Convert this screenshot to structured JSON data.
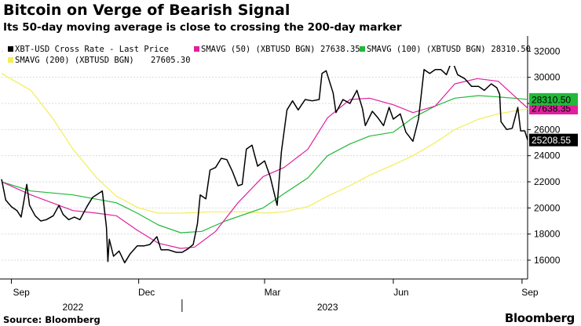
{
  "title": "Bitcoin on Verge of Bearish Signal",
  "subtitle": "Its 50-day moving average is close to crossing the 200-day marker",
  "source": "Source: Bloomberg",
  "brand": "Bloomberg",
  "chart_data": {
    "type": "line",
    "title": "Bitcoin on Verge of Bearish Signal",
    "subtitle": "Its 50-day moving average is close to crossing the 200-day marker",
    "xlabel": "",
    "ylabel": "",
    "x_range": [
      "2022-08-25",
      "2023-09-05"
    ],
    "ylim": [
      14800,
      32800
    ],
    "y_ticks": [
      16000,
      18000,
      20000,
      22000,
      24000,
      26000,
      28000,
      30000,
      32000
    ],
    "y_tick_labels": [
      "16000",
      "18000",
      "20000",
      "22000",
      "24000",
      "26000",
      "28000",
      "30000",
      "32000"
    ],
    "x_ticks": [
      {
        "date": "2022-09-01",
        "label": "Sep"
      },
      {
        "date": "2022-12-01",
        "label": "Dec"
      },
      {
        "date": "2023-03-01",
        "label": "Mar"
      },
      {
        "date": "2023-06-01",
        "label": "Jun"
      },
      {
        "date": "2023-09-01",
        "label": "Sep"
      }
    ],
    "x_year_labels": [
      {
        "date": "2022-10-15",
        "label": "2022"
      },
      {
        "date": "2023-04-15",
        "label": "2023"
      }
    ],
    "grid": true,
    "legend_position": "top",
    "series": [
      {
        "name": "XBT-USD Cross Rate - Last Price",
        "legend_value": "",
        "color": "#000000",
        "last_label": "25208.55",
        "points": [
          [
            "2022-08-25",
            22200
          ],
          [
            "2022-08-28",
            20600
          ],
          [
            "2022-09-01",
            20100
          ],
          [
            "2022-09-05",
            19800
          ],
          [
            "2022-09-08",
            19300
          ],
          [
            "2022-09-12",
            21800
          ],
          [
            "2022-09-14",
            20200
          ],
          [
            "2022-09-18",
            19400
          ],
          [
            "2022-09-22",
            19000
          ],
          [
            "2022-09-26",
            19100
          ],
          [
            "2022-10-01",
            19400
          ],
          [
            "2022-10-05",
            20200
          ],
          [
            "2022-10-08",
            19500
          ],
          [
            "2022-10-12",
            19100
          ],
          [
            "2022-10-16",
            19300
          ],
          [
            "2022-10-20",
            19100
          ],
          [
            "2022-10-25",
            20100
          ],
          [
            "2022-10-29",
            20800
          ],
          [
            "2022-11-05",
            21300
          ],
          [
            "2022-11-08",
            18500
          ],
          [
            "2022-11-09",
            15900
          ],
          [
            "2022-11-10",
            17600
          ],
          [
            "2022-11-13",
            16300
          ],
          [
            "2022-11-17",
            16700
          ],
          [
            "2022-11-21",
            15800
          ],
          [
            "2022-11-25",
            16500
          ],
          [
            "2022-11-30",
            17100
          ],
          [
            "2022-12-05",
            17100
          ],
          [
            "2022-12-09",
            17200
          ],
          [
            "2022-12-14",
            17800
          ],
          [
            "2022-12-17",
            16800
          ],
          [
            "2022-12-22",
            16800
          ],
          [
            "2022-12-28",
            16600
          ],
          [
            "2023-01-01",
            16600
          ],
          [
            "2023-01-05",
            16850
          ],
          [
            "2023-01-09",
            17200
          ],
          [
            "2023-01-12",
            18800
          ],
          [
            "2023-01-14",
            21000
          ],
          [
            "2023-01-18",
            20700
          ],
          [
            "2023-01-21",
            22900
          ],
          [
            "2023-01-25",
            23100
          ],
          [
            "2023-01-29",
            23800
          ],
          [
            "2023-02-02",
            23700
          ],
          [
            "2023-02-06",
            22800
          ],
          [
            "2023-02-10",
            21700
          ],
          [
            "2023-02-13",
            21800
          ],
          [
            "2023-02-16",
            24500
          ],
          [
            "2023-02-20",
            24800
          ],
          [
            "2023-02-24",
            23200
          ],
          [
            "2023-03-01",
            23600
          ],
          [
            "2023-03-05",
            22400
          ],
          [
            "2023-03-10",
            20200
          ],
          [
            "2023-03-13",
            24300
          ],
          [
            "2023-03-17",
            27500
          ],
          [
            "2023-03-21",
            28200
          ],
          [
            "2023-03-25",
            27500
          ],
          [
            "2023-03-30",
            28300
          ],
          [
            "2023-04-04",
            28200
          ],
          [
            "2023-04-09",
            28300
          ],
          [
            "2023-04-11",
            30300
          ],
          [
            "2023-04-14",
            30500
          ],
          [
            "2023-04-19",
            28800
          ],
          [
            "2023-04-21",
            27300
          ],
          [
            "2023-04-26",
            28300
          ],
          [
            "2023-05-01",
            28000
          ],
          [
            "2023-05-06",
            29000
          ],
          [
            "2023-05-10",
            27600
          ],
          [
            "2023-05-12",
            26300
          ],
          [
            "2023-05-17",
            27400
          ],
          [
            "2023-05-21",
            26900
          ],
          [
            "2023-05-25",
            26300
          ],
          [
            "2023-05-29",
            27700
          ],
          [
            "2023-06-01",
            26800
          ],
          [
            "2023-06-06",
            27200
          ],
          [
            "2023-06-10",
            25800
          ],
          [
            "2023-06-15",
            25100
          ],
          [
            "2023-06-19",
            26800
          ],
          [
            "2023-06-21",
            28700
          ],
          [
            "2023-06-23",
            30600
          ],
          [
            "2023-06-27",
            30300
          ],
          [
            "2023-07-01",
            30600
          ],
          [
            "2023-07-05",
            30600
          ],
          [
            "2023-07-09",
            30200
          ],
          [
            "2023-07-13",
            31300
          ],
          [
            "2023-07-17",
            30200
          ],
          [
            "2023-07-22",
            29900
          ],
          [
            "2023-07-27",
            29300
          ],
          [
            "2023-08-01",
            29300
          ],
          [
            "2023-08-05",
            29000
          ],
          [
            "2023-08-10",
            29500
          ],
          [
            "2023-08-14",
            29200
          ],
          [
            "2023-08-16",
            28700
          ],
          [
            "2023-08-17",
            26600
          ],
          [
            "2023-08-21",
            26000
          ],
          [
            "2023-08-25",
            26100
          ],
          [
            "2023-08-29",
            27700
          ],
          [
            "2023-08-31",
            25900
          ],
          [
            "2023-09-03",
            25900
          ],
          [
            "2023-09-05",
            25200
          ]
        ]
      },
      {
        "name": "SMAVG (50) (XBTUSD BGN)",
        "legend_value": "27638.35",
        "color": "#e0209e",
        "last_label": "27638.35",
        "points": [
          [
            "2022-08-25",
            22000
          ],
          [
            "2022-09-15",
            21000
          ],
          [
            "2022-10-15",
            19800
          ],
          [
            "2022-11-01",
            19600
          ],
          [
            "2022-11-15",
            19400
          ],
          [
            "2022-11-30",
            18300
          ],
          [
            "2022-12-15",
            17300
          ],
          [
            "2022-12-31",
            16900
          ],
          [
            "2023-01-10",
            17000
          ],
          [
            "2023-01-25",
            18200
          ],
          [
            "2023-02-10",
            20400
          ],
          [
            "2023-02-28",
            22400
          ],
          [
            "2023-03-15",
            23100
          ],
          [
            "2023-04-01",
            24500
          ],
          [
            "2023-04-15",
            26900
          ],
          [
            "2023-05-01",
            28300
          ],
          [
            "2023-05-15",
            28400
          ],
          [
            "2023-06-01",
            27900
          ],
          [
            "2023-06-15",
            27300
          ],
          [
            "2023-07-01",
            27800
          ],
          [
            "2023-07-15",
            29500
          ],
          [
            "2023-07-31",
            29900
          ],
          [
            "2023-08-15",
            29700
          ],
          [
            "2023-09-05",
            27640
          ]
        ]
      },
      {
        "name": "SMAVG (100) (XBTUSD BGN)",
        "legend_value": "28310.50",
        "color": "#22b83a",
        "last_label": "28310.50",
        "points": [
          [
            "2022-08-25",
            22000
          ],
          [
            "2022-09-15",
            21300
          ],
          [
            "2022-10-15",
            21000
          ],
          [
            "2022-11-15",
            20400
          ],
          [
            "2022-11-30",
            19600
          ],
          [
            "2022-12-15",
            18700
          ],
          [
            "2022-12-31",
            18100
          ],
          [
            "2023-01-15",
            18200
          ],
          [
            "2023-02-01",
            19000
          ],
          [
            "2023-02-28",
            20000
          ],
          [
            "2023-03-15",
            21100
          ],
          [
            "2023-04-01",
            22300
          ],
          [
            "2023-04-15",
            24000
          ],
          [
            "2023-05-01",
            24900
          ],
          [
            "2023-05-15",
            25500
          ],
          [
            "2023-06-01",
            25800
          ],
          [
            "2023-06-15",
            26900
          ],
          [
            "2023-07-01",
            27800
          ],
          [
            "2023-07-15",
            28400
          ],
          [
            "2023-08-01",
            28600
          ],
          [
            "2023-08-15",
            28500
          ],
          [
            "2023-09-05",
            28310
          ]
        ]
      },
      {
        "name": "SMAVG (200) (XBTUSD BGN)",
        "legend_value": "27605.30",
        "color": "#f2ee58",
        "last_label": "",
        "points": [
          [
            "2022-08-25",
            30300
          ],
          [
            "2022-09-15",
            29000
          ],
          [
            "2022-10-01",
            26800
          ],
          [
            "2022-10-15",
            24500
          ],
          [
            "2022-11-01",
            22300
          ],
          [
            "2022-11-15",
            20900
          ],
          [
            "2022-12-01",
            20000
          ],
          [
            "2022-12-15",
            19600
          ],
          [
            "2023-01-01",
            19600
          ],
          [
            "2023-01-20",
            19700
          ],
          [
            "2023-02-15",
            19700
          ],
          [
            "2023-03-01",
            19600
          ],
          [
            "2023-03-15",
            19700
          ],
          [
            "2023-04-01",
            20100
          ],
          [
            "2023-04-15",
            20900
          ],
          [
            "2023-05-01",
            21700
          ],
          [
            "2023-05-15",
            22500
          ],
          [
            "2023-06-01",
            23300
          ],
          [
            "2023-06-15",
            24000
          ],
          [
            "2023-07-01",
            25000
          ],
          [
            "2023-07-15",
            26000
          ],
          [
            "2023-08-01",
            26800
          ],
          [
            "2023-08-15",
            27200
          ],
          [
            "2023-09-05",
            27600
          ]
        ]
      }
    ]
  }
}
